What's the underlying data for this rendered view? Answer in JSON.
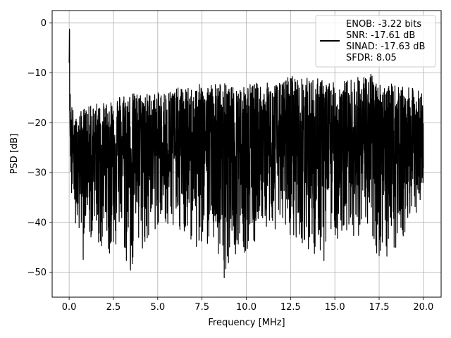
{
  "chart_data": {
    "type": "line",
    "title": "",
    "xlabel": "Frequency [MHz]",
    "ylabel": "PSD [dB]",
    "xlim": [
      -0.96,
      21.0
    ],
    "ylim": [
      -55,
      2.5
    ],
    "xticks": [
      0.0,
      2.5,
      5.0,
      7.5,
      10.0,
      12.5,
      15.0,
      17.5,
      20.0
    ],
    "xtick_labels": [
      "0.0",
      "2.5",
      "5.0",
      "7.5",
      "10.0",
      "12.5",
      "15.0",
      "17.5",
      "20.0"
    ],
    "yticks": [
      0,
      -10,
      -20,
      -30,
      -40,
      -50
    ],
    "ytick_labels": [
      "0",
      "−10",
      "−20",
      "−30",
      "−40",
      "−50"
    ],
    "grid": true,
    "legend_position": "top-right",
    "legend_lines": [
      "ENOB: -3.22 bits",
      "SNR: -17.61 dB",
      "SINAD: -17.63 dB",
      "SFDR: 8.05"
    ],
    "series_color": "#000000",
    "series": [
      {
        "x": [
          0.0,
          0.02,
          0.05,
          0.08,
          0.1,
          0.15,
          0.2,
          0.3,
          0.4,
          0.5,
          0.6,
          0.8,
          1.0,
          1.5,
          2.0,
          2.5,
          3.0,
          3.5,
          4.0,
          4.5,
          5.0,
          6.0,
          7.0,
          7.5,
          8.0,
          8.8,
          9.0,
          10.0,
          11.0,
          12.0,
          12.5,
          13.0,
          13.6,
          14.0,
          15.0,
          16.0,
          17.0,
          17.5,
          18.0,
          19.0,
          19.5,
          20.0
        ],
        "y_upper": [
          -8,
          0,
          -12,
          -14,
          -15,
          -16,
          -17,
          -18,
          -19,
          -19,
          -18,
          -17,
          -17,
          -16,
          -16,
          -15,
          -14,
          -14,
          -14,
          -14,
          -14,
          -13,
          -13,
          -12,
          -12,
          -12,
          -13,
          -12,
          -12,
          -12,
          -10,
          -11,
          -11,
          -11,
          -12,
          -11,
          -10,
          -12,
          -12,
          -13,
          -13,
          -14
        ],
        "y_lower": [
          -12,
          -20,
          -28,
          -30,
          -33,
          -36,
          -38,
          -39,
          -44,
          -41,
          -43,
          -48,
          -42,
          -46,
          -48,
          -45,
          -48,
          -50,
          -46,
          -44,
          -41,
          -41,
          -44,
          -50,
          -42,
          -52,
          -48,
          -46,
          -42,
          -42,
          -43,
          -44,
          -48,
          -50,
          -45,
          -43,
          -42,
          -50,
          -47,
          -43,
          -40,
          -36
        ],
        "y_mid": [
          -10,
          -5,
          -22,
          -24,
          -25,
          -26,
          -26,
          -26,
          -27,
          -27,
          -27,
          -27,
          -26,
          -26,
          -25,
          -25,
          -25,
          -25,
          -25,
          -24,
          -24,
          -24,
          -24,
          -24,
          -24,
          -24,
          -24,
          -24,
          -24,
          -24,
          -24,
          -24,
          -24,
          -24,
          -24,
          -24,
          -24,
          -24,
          -24,
          -24,
          -24,
          -24
        ]
      }
    ]
  }
}
